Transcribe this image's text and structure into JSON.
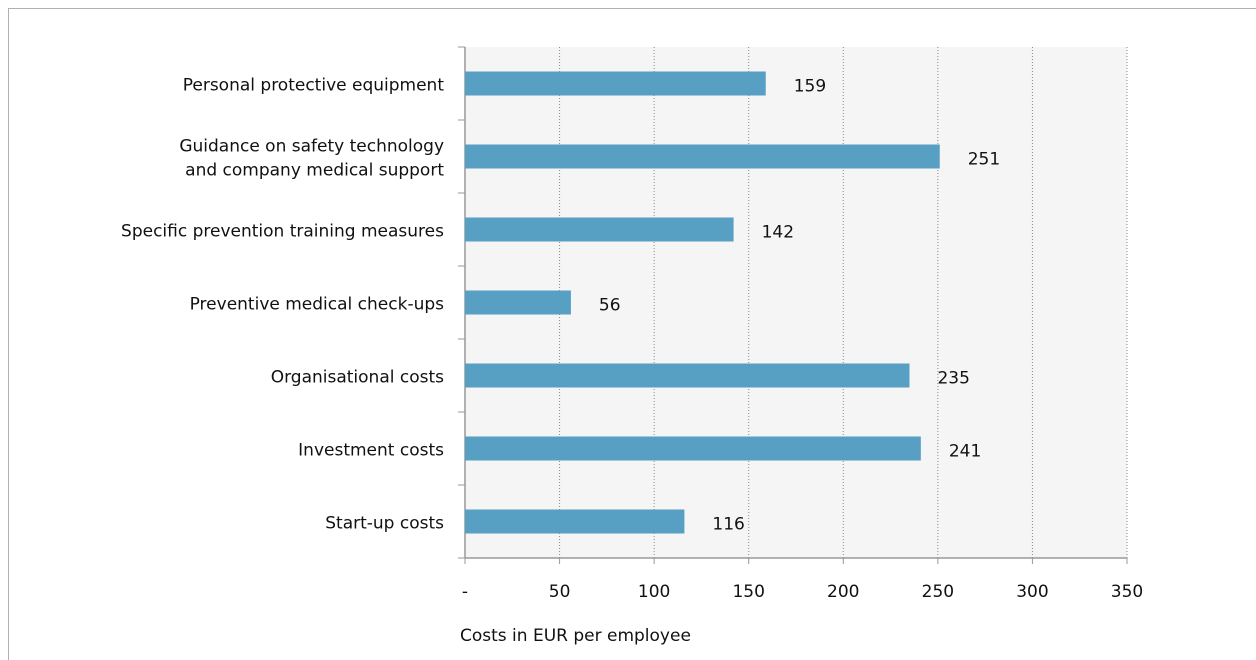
{
  "chart_data": {
    "type": "barh",
    "categories": [
      "Personal protective equipment",
      "Guidance on safety technology\nand company medical support",
      "Specific prevention training measures",
      "Preventive medical check-ups",
      "Organisational costs",
      "Investment costs",
      "Start-up costs"
    ],
    "values": [
      159,
      251,
      142,
      56,
      235,
      241,
      116
    ],
    "color": "#58a0c3",
    "xlim": [
      0,
      350
    ],
    "xticks": [
      {
        "value": 0,
        "label": "-"
      },
      50,
      100,
      150,
      200,
      250,
      300,
      350
    ],
    "xlabel": "Costs in EUR per employee",
    "grid": true
  }
}
